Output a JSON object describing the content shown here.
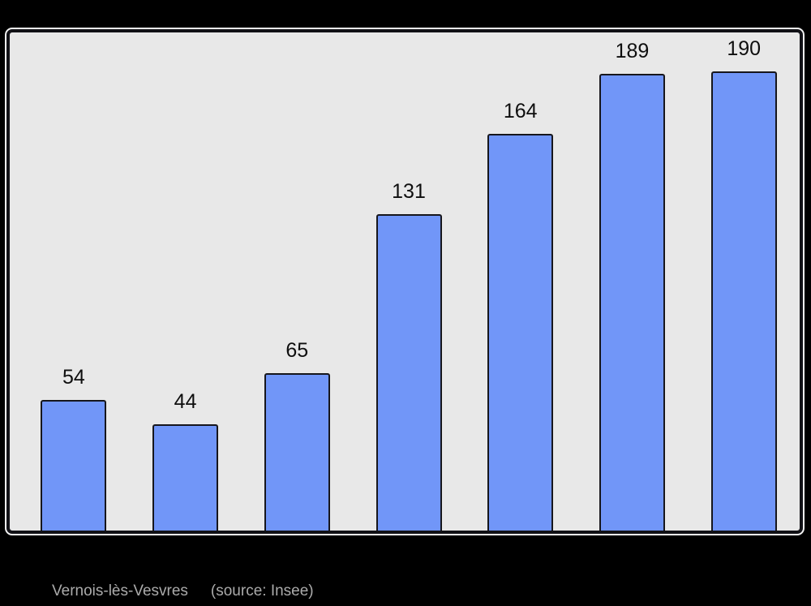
{
  "chart_data": {
    "type": "bar",
    "values": [
      54,
      44,
      65,
      131,
      164,
      189,
      190
    ],
    "data_labels": [
      "54",
      "44",
      "65",
      "131",
      "164",
      "189",
      "190"
    ],
    "title": "",
    "xlabel": "",
    "ylabel": "",
    "ylim": [
      0,
      206
    ],
    "grid": false,
    "legend": false,
    "bar_fill_color": "#7196f8",
    "bar_border_color": "#16161c",
    "plot_background_color": "#e8e8e8",
    "panel_border_color": "#111116",
    "page_background_color": "#000000",
    "label_color": "#0e0e0e"
  },
  "caption": {
    "commune_name": "Vernois-lès-Vesvres",
    "source": "(source: Insee)",
    "text_color": "#ababab"
  }
}
